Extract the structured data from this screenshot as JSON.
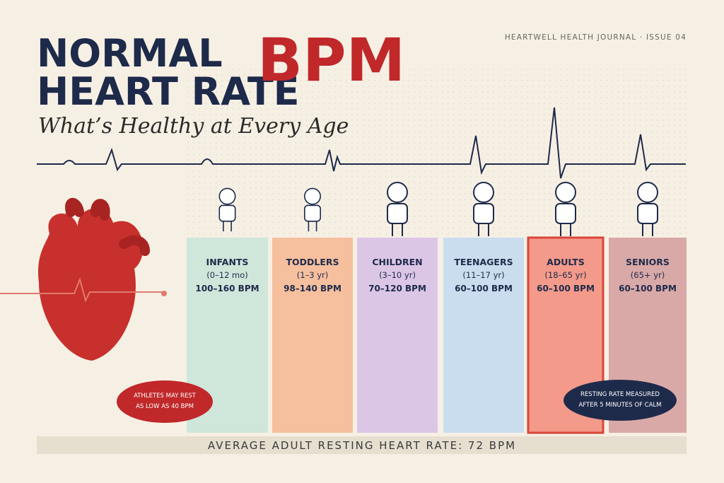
{
  "header": {
    "publication": "HEARTWELL HEALTH JOURNAL · ISSUE 04",
    "title_line1": "NORMAL",
    "title_line2": "HEART RATE",
    "title_accent": "BPM",
    "subtitle": "What’s Healthy at Every Age"
  },
  "groups": [
    {
      "name": "INFANTS",
      "ages": "(0–12 mo)",
      "range": "100–160 BPM"
    },
    {
      "name": "TODDLERS",
      "ages": "(1–3 yr)",
      "range": "98–140 BPM"
    },
    {
      "name": "CHILDREN",
      "ages": "(3–10 yr)",
      "range": "70–120 BPM"
    },
    {
      "name": "TEENAGERS",
      "ages": "(11–17 yr)",
      "range": "60–100 BPM"
    },
    {
      "name": "ADULTS",
      "ages": "(18–65 yr)",
      "range": "60–100 BPM"
    },
    {
      "name": "SENIORS",
      "ages": "(65+ yr)",
      "range": "60–100 BPM"
    }
  ],
  "callouts": {
    "athletes": [
      "ATHLETES MAY REST",
      "AS LOW AS 40 BPM"
    ],
    "measurement": [
      "RESTING RATE MEASURED",
      "AFTER 5 MINUTES OF CALM"
    ]
  },
  "footer": "AVERAGE ADULT RESTING HEART RATE: 72 BPM"
}
